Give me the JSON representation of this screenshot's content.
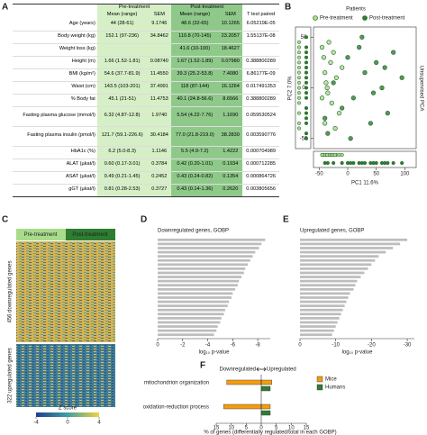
{
  "panel_a": {
    "label": "A",
    "groups": [
      "Pre-treatment",
      "Post-treatment"
    ],
    "columns": [
      "Mean (range)",
      "SEM",
      "Mean (range)",
      "SEM",
      "T test paired"
    ],
    "rows": [
      [
        "Age (years)",
        "44 (28-61)",
        "9.1746",
        "48.6 (32-65)",
        "10.1265",
        "6.05219E-05"
      ],
      [
        "Body weight (kg)",
        "152.1 (97-236)",
        "34.8462",
        "110.8 (70-145)",
        "23.2057",
        "1.55137E-08"
      ],
      [
        "Weight loss (kg)",
        "",
        "",
        "41.6 (10-100)",
        "18.4627",
        ""
      ],
      [
        "Height (m)",
        "1.66 (1.52-1.81)",
        "0.08740",
        "1.67 (1.52-1.89)",
        "0.07980",
        "0.388800289"
      ],
      [
        "BMI (kg/m²)",
        "54.6 (37.7-81.9)",
        "11.4550",
        "39.3 (25.2-53.8)",
        "7.4080",
        "6.86177E-09"
      ],
      [
        "Waist (cm)",
        "143.5 (103-201)",
        "37.4991",
        "118 (87-144)",
        "16.1264",
        "0.017491353"
      ],
      [
        "% Body fat",
        "45.1 (21-51)",
        "11.4753",
        "40.1 (24.8-56.6)",
        "8.6566",
        "0.388800289"
      ],
      [
        "Fasting plasma glucose (mmol/l)",
        "6.32 (4.87-12.8)",
        "1.9740",
        "5.54 (4.22-7.76)",
        "1.1690",
        "0.059530524"
      ],
      [
        "Fasting plasma insulin (pmol/l)",
        "121.7 (59.1-226.6)",
        "30.4184",
        "77.0 (21.8-219.0)",
        "38.2830",
        "0.003590776"
      ],
      [
        "HbA1c (%)",
        "6.2 (5.0-8.3)",
        "1.1146",
        "5.5 (4.9-7.2)",
        "1.4222",
        "0.000704989"
      ],
      [
        "ALAT (µkat/l)",
        "0.60 (0.17-3.01)",
        "0.3784",
        "0.42 (0.20-1.01)",
        "0.1934",
        "0.000712285"
      ],
      [
        "ASAT (µkat/l)",
        "0.49 (0.21-1.45)",
        "0.2452",
        "0.43 (0.24-0.82)",
        "0.1354",
        "0.000864726"
      ],
      [
        "gGT (µkat/l)",
        "0.81 (0.28-2.53)",
        "0.3727",
        "0.43 (0.14-1.36)",
        "0.2620",
        "0.003805656"
      ]
    ]
  },
  "chart_data": [
    {
      "type": "scatter",
      "label": "B",
      "legend_title": "Patients",
      "xlabel": "PC1 11.6%",
      "ylabel": "PC2 7.0%",
      "side_label": "Unsupervised PCA",
      "xlim": [
        -60,
        120
      ],
      "ylim": [
        -60,
        60
      ],
      "xticks": [
        -50,
        0,
        50,
        100
      ],
      "yticks": [
        -50,
        0,
        50
      ],
      "series": [
        {
          "name": "Pre-treatment",
          "color": "#a8dc8c",
          "x": [
            -45,
            -42,
            -40,
            -38,
            -35,
            -30,
            -28,
            -25,
            -20,
            -15,
            -40,
            -33,
            -22,
            -10,
            -45,
            -36
          ],
          "y": [
            40,
            30,
            15,
            5,
            -5,
            25,
            -15,
            35,
            10,
            -25,
            -35,
            45,
            -40,
            20,
            -10,
            0
          ]
        },
        {
          "name": "Post-treatment",
          "color": "#2e7d32",
          "x": [
            -40,
            -35,
            -25,
            -10,
            0,
            10,
            20,
            30,
            40,
            50,
            60,
            70,
            80,
            95,
            5,
            25,
            45,
            65
          ],
          "y": [
            -30,
            -45,
            5,
            -20,
            30,
            -10,
            40,
            15,
            -35,
            25,
            0,
            -25,
            35,
            10,
            -50,
            50,
            -5,
            20
          ]
        }
      ]
    },
    {
      "type": "heatmap",
      "label": "C",
      "columns": [
        "Pre-treatment",
        "Post-treatment"
      ],
      "row_groups": [
        "456 downregulated genes",
        "322 upregulated genes"
      ],
      "colorbar_label": "Z score",
      "clim": [
        -4,
        4
      ],
      "cticks": [
        -4,
        0,
        4
      ]
    },
    {
      "type": "hbar",
      "label": "D",
      "title": "Downregulated genes, GOBP",
      "xlabel": "log₁₀ p-value",
      "color": "#bdbdbd",
      "xlim": [
        0,
        -9
      ],
      "xticks": [
        0,
        -2,
        -4,
        -6,
        -8
      ],
      "values": [
        -8.6,
        -8.3,
        -8.1,
        -7.8,
        -7.6,
        -7.4,
        -7.2,
        -7.0,
        -6.9,
        -6.7,
        -6.5,
        -6.4,
        -6.2,
        -6.0,
        -5.9,
        -5.7,
        -5.6,
        -5.4,
        -5.3,
        -5.1,
        -5.0,
        -4.8,
        -4.7,
        -4.5
      ]
    },
    {
      "type": "hbar",
      "label": "E",
      "title": "Upregulated genes, GOBP",
      "xlabel": "log₁₀ p-value",
      "color": "#bdbdbd",
      "xlim": [
        0,
        -32
      ],
      "xticks": [
        0,
        -10,
        -20,
        -30
      ],
      "values": [
        -30,
        -28,
        -26,
        -24,
        -22,
        -21,
        -20,
        -19,
        -18,
        -17,
        -16,
        -15.5,
        -15,
        -14,
        -13.5,
        -13,
        -12.5,
        -12,
        -11.5,
        -11,
        -10.5,
        -10,
        -9.5,
        -9
      ]
    },
    {
      "type": "diverging_bar",
      "label": "F",
      "left_label": "Downregulated",
      "right_label": "Upregulated",
      "xlabel": "% of genes (differentially regulated/total in each GOBP)",
      "categories": [
        "mitochondrion organization",
        "oxidation-reduction process"
      ],
      "xlim": [
        -15,
        15
      ],
      "xticks": [
        {
          "value": -15,
          "label": "15"
        },
        {
          "value": -10,
          "label": "10"
        },
        {
          "value": -5,
          "label": "5"
        },
        0,
        5,
        10,
        15
      ],
      "series": [
        {
          "name": "Mice",
          "color": "#f39c12",
          "down": [
            -11.5,
            -12.5
          ],
          "up": [
            3.5,
            3
          ]
        },
        {
          "name": "Humans",
          "color": "#2e7d32",
          "down": [
            0,
            0
          ],
          "up": [
            3,
            3
          ]
        }
      ]
    }
  ]
}
